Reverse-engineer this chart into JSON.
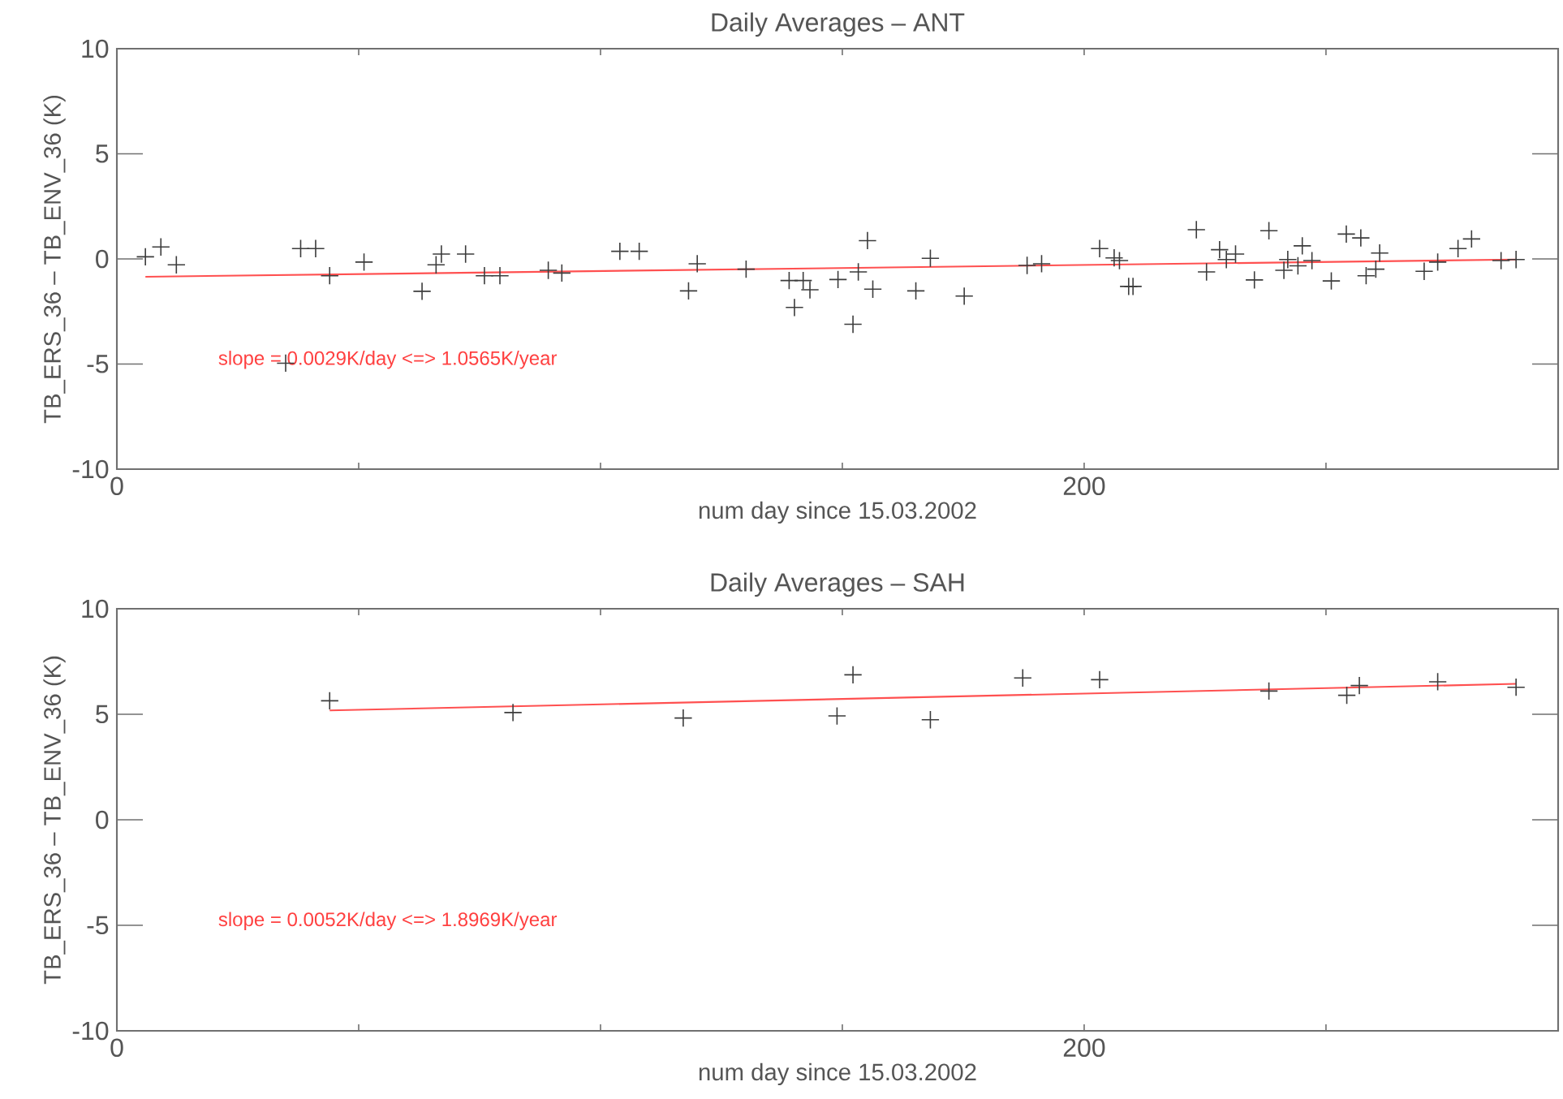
{
  "chart_data": [
    {
      "type": "scatter",
      "title": "Daily Averages – ANT",
      "xlabel": "num day since 15.03.2002",
      "ylabel": "TB_ERS_36 – TB_ENV_36 (K)",
      "marker": "cross",
      "xlim": [
        0,
        298
      ],
      "xticks": [
        {
          "value": 0,
          "label": "0"
        },
        {
          "value": 50,
          "label": null
        },
        {
          "value": 100,
          "label": null
        },
        {
          "value": 150,
          "label": null
        },
        {
          "value": 200,
          "label": "200"
        },
        {
          "value": 250,
          "label": null
        }
      ],
      "ylim": [
        -10,
        10
      ],
      "yticks": [
        -10,
        -5,
        0,
        5,
        10
      ],
      "annotations": [
        "slope = 0.0029K/day <=> 1.0565K/year"
      ],
      "series": [
        {
          "color": "#3c3c3c",
          "x": [
            5.9,
            9.1,
            12.3,
            34.9,
            38.0,
            41.1,
            44.0,
            51.1,
            63.1,
            66.0,
            67.1,
            72.1,
            76.0,
            79.2,
            89.2,
            92.0,
            104.0,
            108.0,
            118.2,
            120.0,
            130.1,
            139.0,
            140.1,
            141.9,
            143.3,
            149.1,
            152.2,
            153.3,
            155.2,
            156.3,
            165.2,
            168.2,
            175.2,
            188.2,
            191.2,
            203.2,
            206.2,
            207.3,
            209.2,
            210.1,
            223.2,
            225.3,
            228.0,
            229.4,
            231.3,
            235.2,
            238.2,
            241.3,
            242.1,
            244.2,
            245.1,
            247.1,
            251.1,
            254.2,
            257.2,
            258.3,
            260.3,
            261.1,
            270.3,
            273.1,
            277.3,
            280.1,
            286.2,
            289.3
          ],
          "values": [
            0.1,
            0.57,
            -0.28,
            -4.96,
            0.49,
            0.49,
            -0.8,
            -0.15,
            -1.54,
            -0.28,
            0.23,
            0.23,
            -0.8,
            -0.8,
            -0.54,
            -0.67,
            0.36,
            0.36,
            -1.52,
            -0.23,
            -0.49,
            -1.03,
            -2.31,
            -1.03,
            -1.47,
            -0.98,
            -3.11,
            -0.62,
            0.87,
            -1.44,
            -1.52,
            0.03,
            -1.77,
            -0.31,
            -0.23,
            0.49,
            0.05,
            -0.08,
            -1.31,
            -1.31,
            1.39,
            -0.62,
            0.44,
            -0.03,
            0.23,
            -1.0,
            1.34,
            -0.54,
            -0.03,
            -0.33,
            0.62,
            -0.08,
            -1.05,
            1.18,
            1.0,
            -0.8,
            -0.49,
            0.28,
            -0.59,
            -0.15,
            0.49,
            0.95,
            -0.08,
            -0.03
          ]
        },
        {
          "type": "line",
          "color": "#ff5050",
          "marker": "none",
          "x": [
            5.9,
            289.3
          ],
          "values": [
            -0.85,
            -0.03
          ]
        }
      ]
    },
    {
      "type": "scatter",
      "title": "Daily Averages – SAH",
      "xlabel": "num day since 15.03.2002",
      "ylabel": "TB_ERS_36 – TB_ENV_36 (K)",
      "marker": "cross",
      "xlim": [
        0,
        298
      ],
      "xticks": [
        {
          "value": 0,
          "label": "0"
        },
        {
          "value": 50,
          "label": null
        },
        {
          "value": 100,
          "label": null
        },
        {
          "value": 150,
          "label": null
        },
        {
          "value": 200,
          "label": "200"
        },
        {
          "value": 250,
          "label": null
        }
      ],
      "ylim": [
        -10,
        10
      ],
      "yticks": [
        -10,
        -5,
        0,
        5,
        10
      ],
      "annotations": [
        "slope = 0.0052K/day <=> 1.8969K/year"
      ],
      "series": [
        {
          "color": "#3c3c3c",
          "x": [
            44.0,
            81.9,
            117.1,
            148.9,
            152.2,
            168.2,
            187.3,
            203.2,
            238.2,
            254.3,
            256.9,
            273.1,
            289.3
          ],
          "values": [
            5.64,
            5.08,
            4.82,
            4.92,
            6.87,
            4.74,
            6.72,
            6.64,
            6.1,
            5.9,
            6.36,
            6.54,
            6.28
          ]
        },
        {
          "type": "line",
          "color": "#ff5050",
          "marker": "none",
          "x": [
            44.0,
            289.3
          ],
          "values": [
            5.18,
            6.44
          ]
        }
      ]
    }
  ]
}
